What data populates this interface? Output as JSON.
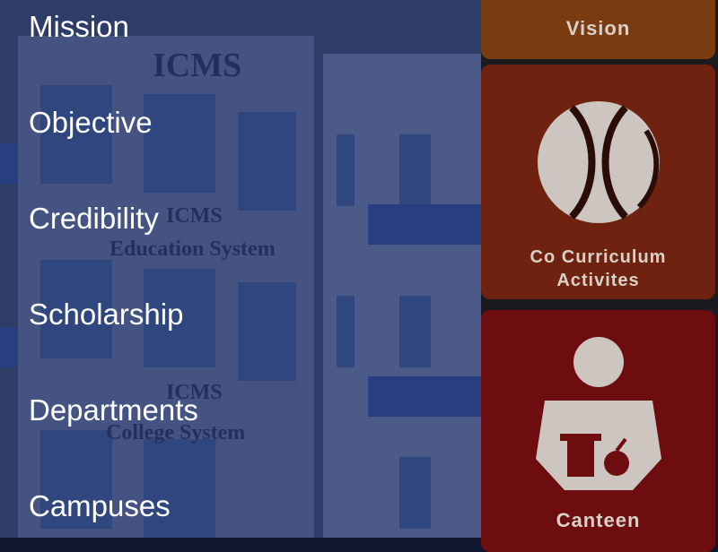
{
  "tiles": {
    "vision": "Vision",
    "co_curricular": "Co Curriculum\nActivites",
    "canteen": "Canteen"
  },
  "drawer": {
    "items": [
      {
        "label": "Mission"
      },
      {
        "label": "Objective"
      },
      {
        "label": "Credibility"
      },
      {
        "label": "Scholarship"
      },
      {
        "label": "Departments"
      },
      {
        "label": "Campuses"
      }
    ],
    "building_signs": [
      "ICMS",
      "ICMS",
      "Education System",
      "ICMS",
      "College System"
    ]
  },
  "colors": {
    "vision_tile": "#7a3b10",
    "cca_tile": "#6e220f",
    "canteen_tile": "#6d0d0f",
    "drawer_text": "#ffffff"
  }
}
